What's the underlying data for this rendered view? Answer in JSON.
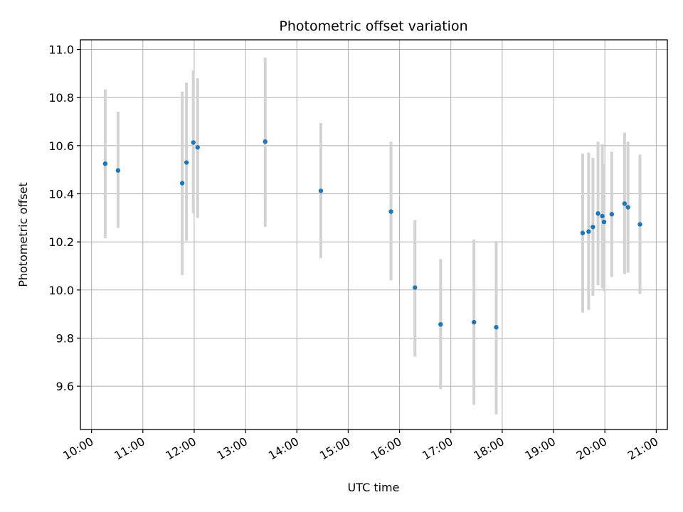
{
  "chart_data": {
    "type": "scatter",
    "title": "Photometric offset variation",
    "xlabel": "UTC time",
    "ylabel": "Photometric offset",
    "xlim": [
      "09:47",
      "21:13"
    ],
    "ylim": [
      9.42,
      11.04
    ],
    "x_ticks": [
      "10:00",
      "11:00",
      "12:00",
      "13:00",
      "14:00",
      "15:00",
      "16:00",
      "17:00",
      "18:00",
      "19:00",
      "20:00",
      "21:00"
    ],
    "y_ticks": [
      9.6,
      9.8,
      10.0,
      10.2,
      10.4,
      10.6,
      10.8,
      11.0
    ],
    "y_tick_labels": [
      "9.6",
      "9.8",
      "10.0",
      "10.2",
      "10.4",
      "10.6",
      "10.8",
      "11.0"
    ],
    "grid": true,
    "colors": {
      "point": "#1f77b4",
      "errorbar": "#d3d3d3"
    },
    "points": [
      {
        "x": "10:16",
        "y": 10.525,
        "y_low": 10.215,
        "y_high": 10.833
      },
      {
        "x": "10:31",
        "y": 10.497,
        "y_low": 10.258,
        "y_high": 10.741
      },
      {
        "x": "11:46",
        "y": 10.444,
        "y_low": 10.062,
        "y_high": 10.825
      },
      {
        "x": "11:51",
        "y": 10.53,
        "y_low": 10.205,
        "y_high": 10.862
      },
      {
        "x": "11:59",
        "y": 10.613,
        "y_low": 10.318,
        "y_high": 10.912
      },
      {
        "x": "12:04",
        "y": 10.593,
        "y_low": 10.3,
        "y_high": 10.88
      },
      {
        "x": "13:23",
        "y": 10.617,
        "y_low": 10.263,
        "y_high": 10.966
      },
      {
        "x": "14:28",
        "y": 10.412,
        "y_low": 10.132,
        "y_high": 10.694
      },
      {
        "x": "15:50",
        "y": 10.326,
        "y_low": 10.04,
        "y_high": 10.616
      },
      {
        "x": "16:18",
        "y": 10.01,
        "y_low": 9.723,
        "y_high": 10.291
      },
      {
        "x": "16:48",
        "y": 9.857,
        "y_low": 9.588,
        "y_high": 10.129
      },
      {
        "x": "17:27",
        "y": 9.866,
        "y_low": 9.523,
        "y_high": 10.21
      },
      {
        "x": "17:53",
        "y": 9.845,
        "y_low": 9.483,
        "y_high": 10.203
      },
      {
        "x": "19:34",
        "y": 10.237,
        "y_low": 9.906,
        "y_high": 10.567
      },
      {
        "x": "19:41",
        "y": 10.243,
        "y_low": 9.917,
        "y_high": 10.571
      },
      {
        "x": "19:46",
        "y": 10.262,
        "y_low": 9.976,
        "y_high": 10.549
      },
      {
        "x": "19:52",
        "y": 10.318,
        "y_low": 10.02,
        "y_high": 10.616
      },
      {
        "x": "19:57",
        "y": 10.307,
        "y_low": 10.008,
        "y_high": 10.606
      },
      {
        "x": "19:59",
        "y": 10.283,
        "y_low": 9.995,
        "y_high": 10.525
      },
      {
        "x": "20:08",
        "y": 10.315,
        "y_low": 10.054,
        "y_high": 10.575
      },
      {
        "x": "20:23",
        "y": 10.359,
        "y_low": 10.066,
        "y_high": 10.654
      },
      {
        "x": "20:27",
        "y": 10.344,
        "y_low": 10.072,
        "y_high": 10.616
      },
      {
        "x": "20:41",
        "y": 10.273,
        "y_low": 9.983,
        "y_high": 10.563
      }
    ]
  }
}
